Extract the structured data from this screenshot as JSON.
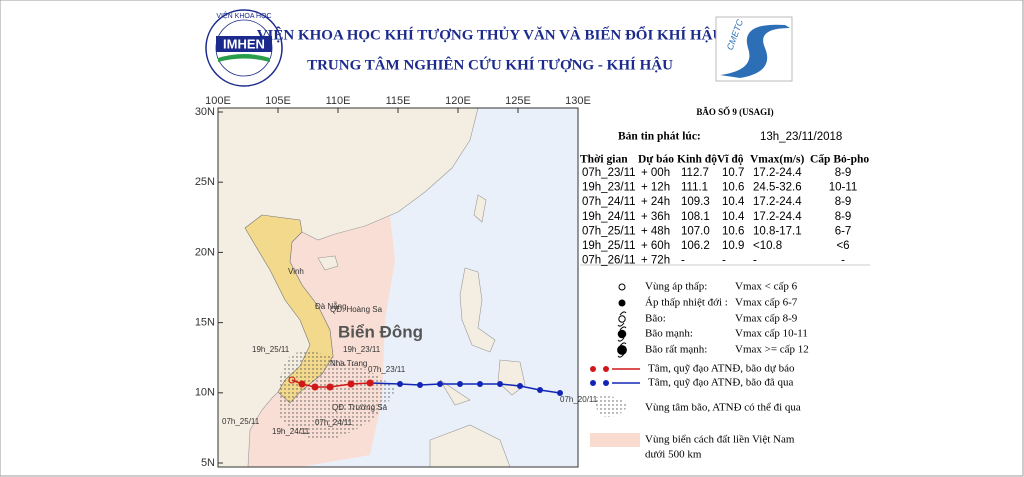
{
  "header": {
    "institute": "VIỆN KHOA HỌC KHÍ TƯỢNG THỦY VĂN VÀ BIẾN ĐỔI KHÍ HẬU",
    "center": "TRUNG TÂM NGHIÊN CỨU KHÍ TƯỢNG - KHÍ HẬU",
    "logo_left_name": "IMHEN",
    "logo_left_top": "VIỆN KHOA HỌC",
    "logo_right": "CMETC"
  },
  "map": {
    "lon_labels": [
      "100E",
      "105E",
      "110E",
      "115E",
      "120E",
      "125E",
      "130E"
    ],
    "lat_labels": [
      "30N",
      "25N",
      "20N",
      "15N",
      "10N",
      "5N"
    ],
    "sea_label": "Biển Đông",
    "places": [
      "Vinh",
      "Đà Nẵng",
      "QĐ. Hoàng Sa",
      "Nha Trang",
      "QĐ. Trường Sa"
    ],
    "track_labels": [
      "07h_20/11",
      "07h_23/11",
      "19h_23/11",
      "07h_24/11",
      "19h_24/11",
      "07h_25/11",
      "19h_25/11"
    ]
  },
  "bulletin": {
    "title": "BÃO SỐ 9 (USAGI)",
    "issued_label": "Bản tin phát lúc:",
    "issued_time": "13h_23/11/2018",
    "table": {
      "header": [
        "Thời gian",
        "Dự báo",
        "Kinh độ",
        "Vĩ độ",
        "Vmax(m/s)",
        "Cấp Bỏ-pho"
      ],
      "rows": [
        [
          "07h_23/11",
          "+ 00h",
          "112.7",
          "10.7",
          "17.2-24.4",
          "8-9"
        ],
        [
          "19h_23/11",
          "+ 12h",
          "111.1",
          "10.6",
          "24.5-32.6",
          "10-11"
        ],
        [
          "07h_24/11",
          "+ 24h",
          "109.3",
          "10.4",
          "17.2-24.4",
          "8-9"
        ],
        [
          "19h_24/11",
          "+ 36h",
          "108.1",
          "10.4",
          "17.2-24.4",
          "8-9"
        ],
        [
          "07h_25/11",
          "+ 48h",
          "107.0",
          "10.6",
          "10.8-17.1",
          "6-7"
        ],
        [
          "19h_25/11",
          "+ 60h",
          "106.2",
          "10.9",
          "<10.8",
          "<6"
        ],
        [
          "07h_26/11",
          "+ 72h",
          "-",
          "-",
          "-",
          "-"
        ]
      ]
    }
  },
  "legend": {
    "categories": [
      [
        "Vùng áp thấp:",
        "Vmax < cấp 6"
      ],
      [
        "Áp thấp nhiệt đới :",
        "Vmax cấp 6-7"
      ],
      [
        "Bão:",
        "Vmax cấp 8-9"
      ],
      [
        "Bão mạnh:",
        "Vmax cấp 10-11"
      ],
      [
        "Bão rất mạnh:",
        "Vmax >= cấp 12"
      ]
    ],
    "forecast": "Tâm, quỹ đạo ATNĐ, bão dự báo",
    "past": "Tâm, quỹ đạo ATNĐ, bão đã qua",
    "cone": "Vùng tâm bão, ATNĐ có thể đi qua",
    "zone": [
      "Vùng biển cách đất liền Việt Nam",
      "dưới 500 km"
    ]
  }
}
